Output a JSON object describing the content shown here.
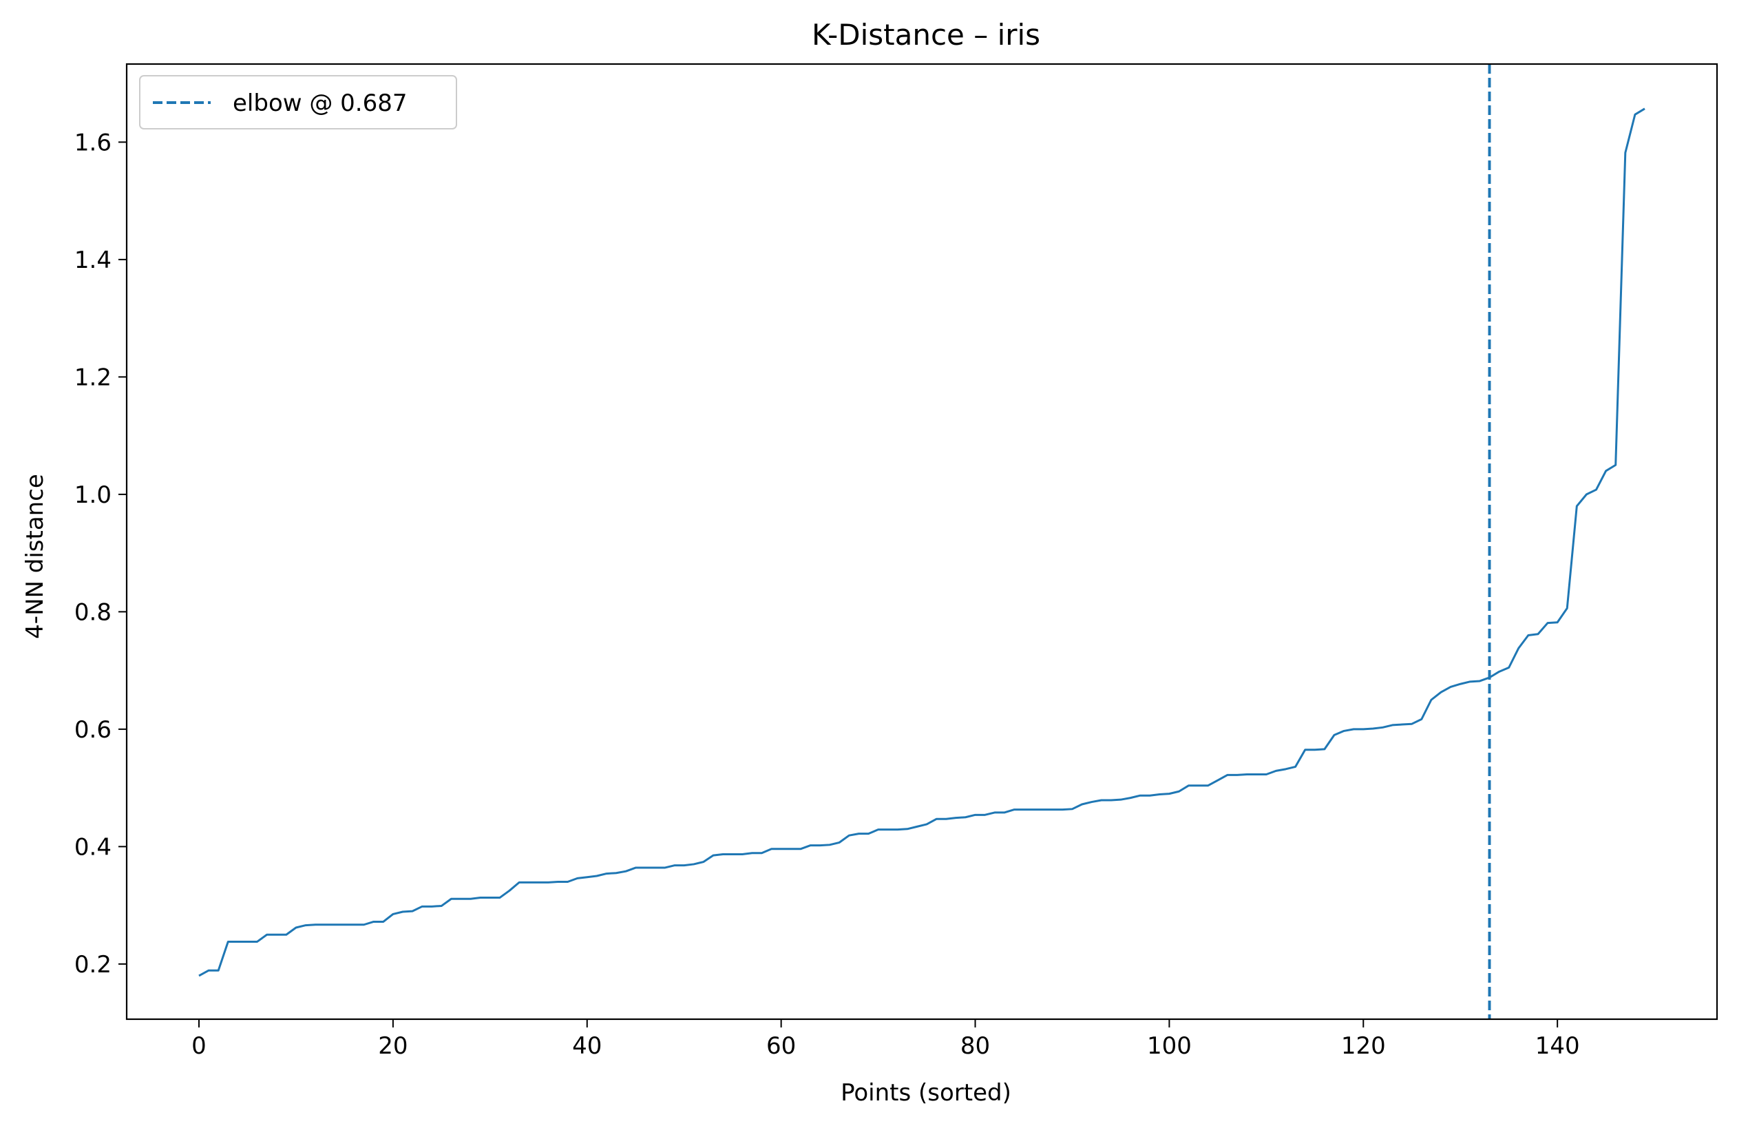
{
  "chart_data": {
    "type": "line",
    "title": "K-Distance – iris",
    "xlabel": "Points (sorted)",
    "ylabel": "4-NN distance",
    "xlim": [
      -7.45,
      156.45
    ],
    "ylim": [
      0.106,
      1.733
    ],
    "xticks": [
      0,
      20,
      40,
      60,
      80,
      100,
      120,
      140
    ],
    "xtick_labels": [
      "0",
      "20",
      "40",
      "60",
      "80",
      "100",
      "120",
      "140"
    ],
    "yticks": [
      0.2,
      0.4,
      0.6,
      0.8,
      1.0,
      1.2,
      1.4,
      1.6
    ],
    "ytick_labels": [
      "0.2",
      "0.4",
      "0.6",
      "0.8",
      "1.0",
      "1.2",
      "1.4",
      "1.6"
    ],
    "grid": false,
    "legend_position": "top-left",
    "series": [
      {
        "color": "#1f77b4",
        "style": "solid",
        "values": [
          0.18,
          0.189,
          0.189,
          0.238,
          0.238,
          0.238,
          0.238,
          0.25,
          0.25,
          0.25,
          0.262,
          0.266,
          0.267,
          0.267,
          0.267,
          0.267,
          0.267,
          0.267,
          0.272,
          0.272,
          0.285,
          0.289,
          0.29,
          0.298,
          0.298,
          0.299,
          0.311,
          0.311,
          0.311,
          0.313,
          0.313,
          0.313,
          0.325,
          0.339,
          0.339,
          0.339,
          0.339,
          0.34,
          0.34,
          0.346,
          0.348,
          0.35,
          0.354,
          0.355,
          0.358,
          0.364,
          0.364,
          0.364,
          0.364,
          0.368,
          0.368,
          0.37,
          0.374,
          0.385,
          0.387,
          0.387,
          0.387,
          0.389,
          0.389,
          0.396,
          0.396,
          0.396,
          0.396,
          0.402,
          0.402,
          0.403,
          0.407,
          0.419,
          0.422,
          0.422,
          0.429,
          0.429,
          0.429,
          0.43,
          0.434,
          0.438,
          0.447,
          0.447,
          0.449,
          0.45,
          0.454,
          0.454,
          0.458,
          0.458,
          0.463,
          0.463,
          0.463,
          0.463,
          0.463,
          0.463,
          0.464,
          0.472,
          0.476,
          0.479,
          0.479,
          0.48,
          0.483,
          0.487,
          0.487,
          0.489,
          0.49,
          0.494,
          0.504,
          0.504,
          0.504,
          0.513,
          0.522,
          0.522,
          0.523,
          0.523,
          0.523,
          0.529,
          0.532,
          0.536,
          0.565,
          0.565,
          0.566,
          0.59,
          0.597,
          0.6,
          0.6,
          0.601,
          0.603,
          0.607,
          0.608,
          0.609,
          0.617,
          0.65,
          0.663,
          0.672,
          0.677,
          0.681,
          0.682,
          0.688,
          0.698,
          0.705,
          0.738,
          0.76,
          0.762,
          0.781,
          0.782,
          0.806,
          0.98,
          1.0,
          1.008,
          1.04,
          1.05,
          1.582,
          1.647,
          1.657
        ]
      },
      {
        "name": "elbow @ 0.687",
        "color": "#1f77b4",
        "style": "dashed",
        "x": 133
      }
    ]
  }
}
